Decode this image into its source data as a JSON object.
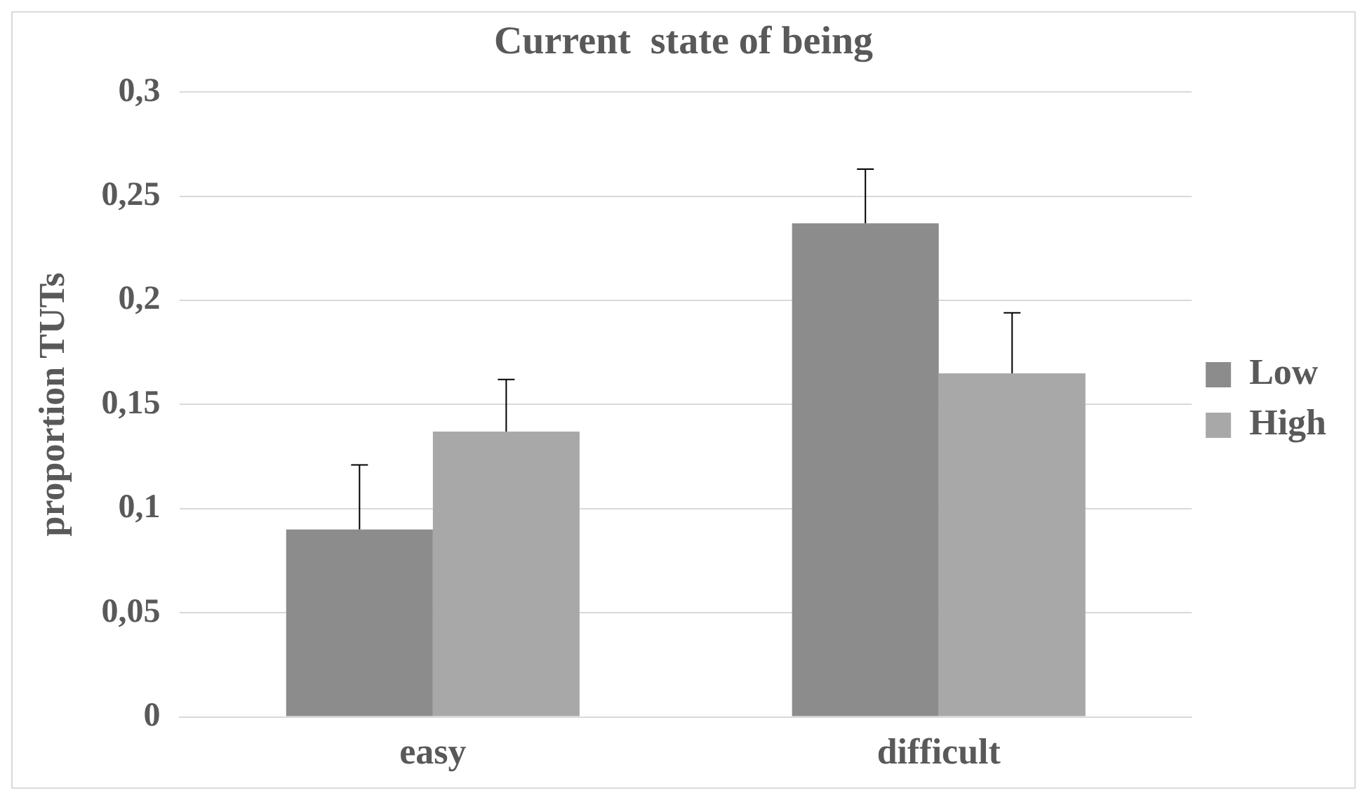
{
  "chart_data": {
    "type": "bar",
    "title": "Current  state of being",
    "ylabel": "proportion TUTs",
    "categories": [
      "easy",
      "difficult"
    ],
    "series": [
      {
        "name": "Low",
        "color": "#8c8c8c",
        "values": [
          0.09,
          0.237
        ],
        "errors": [
          [
            0.09,
            0.121
          ],
          [
            0.237,
            0.263
          ]
        ]
      },
      {
        "name": "High",
        "color": "#a8a8a8",
        "values": [
          0.137,
          0.165
        ],
        "errors": [
          [
            0.137,
            0.162
          ],
          [
            0.165,
            0.194
          ]
        ]
      }
    ],
    "ylim": [
      0,
      0.3
    ],
    "yticks": [
      0,
      {
        "value": 0.05,
        "label": "0,05"
      },
      {
        "value": 0.1,
        "label": "0,1"
      },
      {
        "value": 0.15,
        "label": "0,15"
      },
      {
        "value": 0.2,
        "label": "0,2"
      },
      {
        "value": 0.25,
        "label": "0,25"
      },
      {
        "value": 0.3,
        "label": "0,3"
      }
    ],
    "grid": "y",
    "legend": "right"
  }
}
